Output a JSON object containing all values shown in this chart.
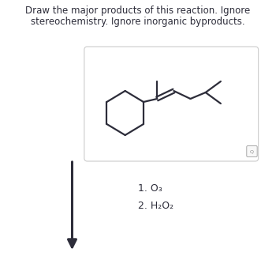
{
  "title_line1": "Draw the major products of this reaction. Ignore",
  "title_line2": "stereochemistry. Ignore inorganic byproducts.",
  "reagent1": "1. O₃",
  "reagent2": "2. H₂O₂",
  "bg_color": "#ffffff",
  "box_edge_color": "#cccccc",
  "box_face_color": "#ffffff",
  "line_color": "#2d2d3a",
  "text_color": "#2d2d3a",
  "title_fontsize": 8.5,
  "reagent_fontsize": 9.0
}
